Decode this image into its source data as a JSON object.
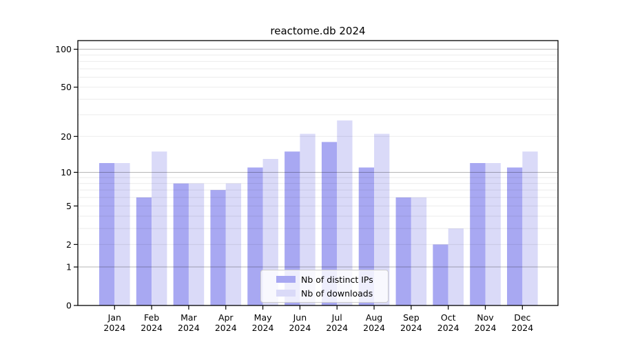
{
  "title": "reactome.db 2024",
  "colors": {
    "ips_bar": "#a8a8f2",
    "downloads_bar": "#dadaf8",
    "grid_major": "rgba(0,0,0,0.29)",
    "grid_minor": "rgba(0,0,0,0.08)",
    "spine": "#000000",
    "tick": "#000000",
    "text": "#000000",
    "legend_border": "#cccccc"
  },
  "legend": {
    "items": [
      {
        "label": "Nb of distinct IPs",
        "color_key": "ips_bar"
      },
      {
        "label": "Nb of downloads",
        "color_key": "downloads_bar"
      }
    ]
  },
  "chart_data": {
    "type": "bar",
    "title": "reactome.db 2024",
    "categories": [
      "Jan 2024",
      "Feb 2024",
      "Mar 2024",
      "Apr 2024",
      "May 2024",
      "Jun 2024",
      "Jul 2024",
      "Aug 2024",
      "Sep 2024",
      "Oct 2024",
      "Nov 2024",
      "Dec 2024"
    ],
    "x_months": [
      "Jan",
      "Feb",
      "Mar",
      "Apr",
      "May",
      "Jun",
      "Jul",
      "Aug",
      "Sep",
      "Oct",
      "Nov",
      "Dec"
    ],
    "x_year": "2024",
    "series": [
      {
        "name": "Nb of distinct IPs",
        "values": [
          12,
          6,
          8,
          7,
          11,
          15,
          18,
          11,
          6,
          2,
          12,
          11
        ],
        "color": "#a8a8f2"
      },
      {
        "name": "Nb of downloads",
        "values": [
          12,
          15,
          8,
          8,
          13,
          21,
          27,
          21,
          6,
          3,
          12,
          15
        ],
        "color": "#dadaf8"
      }
    ],
    "xlabel": "",
    "ylabel": "",
    "yscale": "log1p",
    "ylim": [
      0,
      117
    ],
    "y_ticks": [
      0,
      1,
      2,
      5,
      10,
      20,
      50,
      100
    ],
    "y_tick_labels": [
      "0",
      "1",
      "2",
      "5",
      "10",
      "20",
      "50",
      "100"
    ],
    "y_major_gridlines": [
      1,
      10,
      100
    ],
    "y_minor_gridlines": [
      2,
      3,
      4,
      5,
      6,
      7,
      8,
      9,
      20,
      30,
      40,
      50,
      60,
      70,
      80,
      90
    ],
    "grid": "both",
    "legend_position": "lower-center"
  }
}
